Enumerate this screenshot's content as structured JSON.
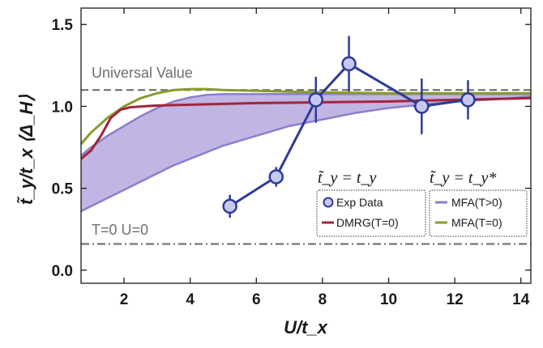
{
  "chart_data": {
    "type": "line",
    "xlabel": "U/t_x",
    "ylabel": "t̃_y/t_x ⟨Δ_H⟩",
    "xlim": [
      0.7,
      14.3
    ],
    "ylim": [
      -0.08,
      1.6
    ],
    "x_ticks": [
      2,
      4,
      6,
      8,
      10,
      12,
      14
    ],
    "y_ticks": [
      0.0,
      0.5,
      1.0,
      1.5
    ],
    "x_tick_labels": [
      "2",
      "4",
      "6",
      "8",
      "10",
      "12",
      "14"
    ],
    "y_tick_labels": [
      "0.0",
      "0.5",
      "1.0",
      "1.5"
    ],
    "grid": false,
    "legend_position": "bottom-right",
    "colors": {
      "exp": "#2e3a9a",
      "exp_fill": "#c6c9ee",
      "dmrg": "#a3243a",
      "mfa_hot": "#8c7fcc",
      "mfa_band": "#b6a8de",
      "mfa_zero": "#8a9a2c",
      "reference": "#6f6f6f"
    },
    "reference_lines": [
      {
        "label": "Universal Value",
        "y": 1.1,
        "style": "dashed"
      },
      {
        "label": "T=0  U=0",
        "y": 0.16,
        "style": "dashdot"
      }
    ],
    "legend_groups": [
      {
        "header": "t̃_y = t_y",
        "entries": [
          "Exp Data",
          "DMRG(T=0)"
        ]
      },
      {
        "header": "t̃_y = t_y*",
        "entries": [
          "MFA(T>0)",
          "MFA(T=0)"
        ]
      }
    ],
    "series": [
      {
        "name": "Exp Data",
        "x": [
          5.2,
          6.6,
          7.8,
          8.8,
          11.0,
          12.4
        ],
        "y": [
          0.39,
          0.57,
          1.04,
          1.26,
          1.0,
          1.04
        ],
        "yerr": [
          0.07,
          0.06,
          0.14,
          0.17,
          0.17,
          0.12
        ],
        "xerr": [
          0.18,
          0.18,
          0.22,
          0.22,
          0.25,
          0.25
        ]
      },
      {
        "name": "DMRG(T=0)",
        "x": [
          0.7,
          1.0,
          1.3,
          1.6,
          1.9,
          2.2,
          2.6,
          3.0,
          4.0,
          5.0,
          6.0,
          8.0,
          10.0,
          12.0,
          14.3
        ],
        "y": [
          0.68,
          0.73,
          0.82,
          0.93,
          0.98,
          0.995,
          1.0,
          1.005,
          1.01,
          1.015,
          1.02,
          1.025,
          1.03,
          1.04,
          1.05
        ]
      },
      {
        "name": "MFA(T=0)",
        "x": [
          0.7,
          1.0,
          1.5,
          2.0,
          2.5,
          3.0,
          3.5,
          4.0,
          4.5,
          5.0,
          6.0,
          8.0,
          10.0,
          12.0,
          14.3
        ],
        "y": [
          0.77,
          0.84,
          0.93,
          1.0,
          1.05,
          1.08,
          1.1,
          1.105,
          1.105,
          1.1,
          1.095,
          1.085,
          1.08,
          1.08,
          1.08
        ]
      },
      {
        "name": "MFA(T>0)",
        "x": [
          0.7,
          1.0,
          1.5,
          2.0,
          2.5,
          3.0,
          3.5,
          4.0,
          4.5,
          5.0,
          6.0,
          7.0,
          8.0,
          9.0,
          10.0,
          11.0,
          12.0,
          13.0,
          14.3
        ],
        "upper": [
          0.7,
          0.75,
          0.82,
          0.88,
          0.94,
          0.99,
          1.03,
          1.055,
          1.07,
          1.075,
          1.075,
          1.075,
          1.075,
          1.075,
          1.075,
          1.075,
          1.075,
          1.075,
          1.075
        ],
        "lower": [
          0.36,
          0.39,
          0.44,
          0.49,
          0.54,
          0.59,
          0.64,
          0.68,
          0.72,
          0.76,
          0.82,
          0.88,
          0.92,
          0.96,
          0.99,
          1.01,
          1.03,
          1.04,
          1.06
        ]
      }
    ]
  }
}
